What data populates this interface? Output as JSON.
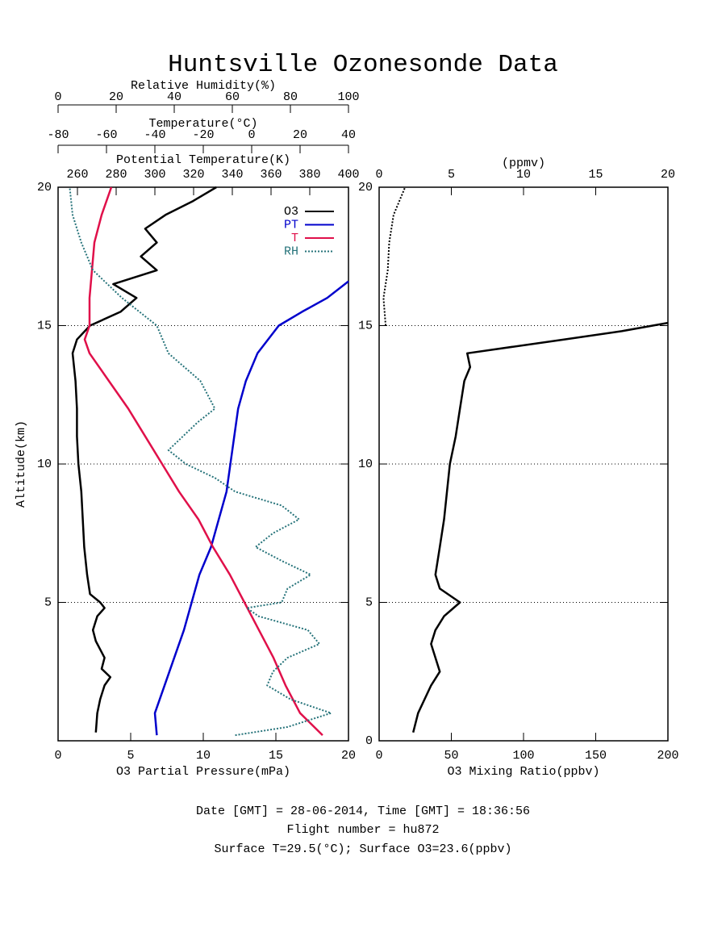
{
  "title": "Huntsville Ozonesonde Data",
  "footer": [
    "Date [GMT] = 28-06-2014,  Time [GMT] = 18:36:56",
    "Flight number = hu872",
    "Surface T=29.5(°C); Surface O3=23.6(ppbv)"
  ],
  "chart_data": [
    {
      "type": "line",
      "ylabel": "Altitude(km)",
      "ylim": [
        0,
        20
      ],
      "yticks": [
        5,
        10,
        15,
        20
      ],
      "grid": true,
      "xlabel": "O3 Partial Pressure(mPa)",
      "xlim": [
        0,
        20
      ],
      "xticks": [
        0,
        5,
        10,
        15,
        20
      ],
      "top_axes": [
        {
          "label": "Potential Temperature(K)",
          "lim": [
            250,
            400
          ],
          "ticks": [
            260,
            280,
            300,
            320,
            340,
            360,
            380,
            400
          ]
        },
        {
          "label": "Temperature(°C)",
          "lim": [
            -80,
            40
          ],
          "ticks": [
            -80,
            -60,
            -40,
            -20,
            0,
            20,
            40
          ]
        },
        {
          "label": "Relative Humidity(%)",
          "lim": [
            0,
            100
          ],
          "ticks": [
            0,
            20,
            40,
            60,
            80,
            100
          ]
        }
      ],
      "series": [
        {
          "name": "O3",
          "color": "#000000",
          "altitude": [
            0.3,
            1,
            1.5,
            2,
            2.3,
            2.6,
            3,
            3.3,
            3.6,
            4,
            4.5,
            4.8,
            5,
            5.3,
            6,
            7,
            8,
            9,
            10,
            11,
            12,
            13,
            14,
            14.5,
            15,
            15.5,
            16,
            16.5,
            17,
            17.5,
            18,
            18.5,
            19,
            19.5,
            20
          ],
          "values": [
            2.6,
            2.7,
            2.9,
            3.2,
            3.6,
            3.0,
            3.2,
            2.9,
            2.6,
            2.4,
            2.7,
            3.2,
            2.9,
            2.2,
            2.0,
            1.8,
            1.7,
            1.6,
            1.4,
            1.3,
            1.3,
            1.2,
            1.0,
            1.3,
            2.2,
            4.3,
            5.4,
            3.8,
            6.8,
            5.7,
            6.8,
            6.0,
            7.4,
            9.3,
            10.9
          ]
        },
        {
          "name": "PT",
          "color": "#0000cc",
          "axis": 0,
          "altitude": [
            0.2,
            1,
            2,
            3,
            4,
            5,
            6,
            7,
            8,
            9,
            10,
            11,
            12,
            13,
            14,
            15,
            15.5,
            16,
            16.6
          ],
          "values": [
            301,
            300,
            305,
            310,
            315,
            319,
            323,
            329,
            333,
            337,
            339,
            341,
            343,
            347,
            353,
            364,
            376,
            389,
            400
          ]
        },
        {
          "name": "T",
          "color": "#e0104a",
          "axis": 1,
          "altitude": [
            0.2,
            1,
            2,
            3,
            4,
            5,
            6,
            7,
            8,
            9,
            10,
            11,
            12,
            13,
            14,
            14.5,
            15,
            16,
            17,
            18,
            19,
            20
          ],
          "values": [
            29.3,
            20,
            14,
            9,
            3,
            -3,
            -9,
            -16,
            -22,
            -30,
            -37,
            -44,
            -51,
            -59,
            -67,
            -69,
            -67,
            -67,
            -66,
            -65,
            -62,
            -58
          ]
        },
        {
          "name": "RH",
          "color": "#26737a",
          "axis": 2,
          "style": "dotted",
          "altitude": [
            0.2,
            0.5,
            1,
            1.5,
            2,
            2.5,
            3,
            3.5,
            4,
            4.5,
            4.8,
            5,
            5.5,
            6,
            6.5,
            7,
            7.5,
            8,
            8.5,
            9,
            9.5,
            10,
            10.5,
            11,
            11.5,
            12,
            13,
            14,
            15,
            16,
            17,
            18,
            19,
            20
          ],
          "values": [
            61,
            79,
            94,
            80,
            72,
            74,
            79,
            90,
            86,
            69,
            65,
            77,
            79,
            87,
            77,
            68,
            74,
            83,
            77,
            61,
            54,
            44,
            38,
            43,
            48,
            54,
            49,
            38,
            34,
            22,
            12,
            8,
            5,
            4
          ]
        }
      ]
    },
    {
      "type": "line",
      "ylim": [
        0,
        20
      ],
      "yticks": [
        0,
        5,
        10,
        15,
        20
      ],
      "grid": true,
      "xlabel": "O3 Mixing Ratio(ppbv)",
      "xlim": [
        0,
        200
      ],
      "xticks": [
        0,
        50,
        100,
        150,
        200
      ],
      "top_axes": [
        {
          "label": "(ppmv)",
          "lim": [
            0,
            20
          ],
          "ticks": [
            0,
            5,
            10,
            15,
            20
          ]
        }
      ],
      "series": [
        {
          "color": "#000000",
          "altitude": [
            0.3,
            1,
            2,
            2.5,
            3,
            3.5,
            4,
            4.5,
            5,
            5.5,
            6,
            7,
            8,
            9,
            10,
            11,
            12,
            13,
            13.5,
            14,
            14.5,
            14.8,
            15.1
          ],
          "values": [
            23.6,
            27,
            36,
            42,
            39,
            36,
            39,
            45,
            56,
            42,
            39,
            42,
            45,
            47,
            49,
            53,
            56,
            59,
            63,
            61,
            128,
            168,
            200
          ]
        },
        {
          "color": "#000000",
          "style": "dotted",
          "altitude": [
            15,
            16,
            17,
            18,
            19,
            20
          ],
          "values": [
            4.5,
            3,
            6,
            7,
            10,
            18
          ]
        }
      ]
    }
  ]
}
